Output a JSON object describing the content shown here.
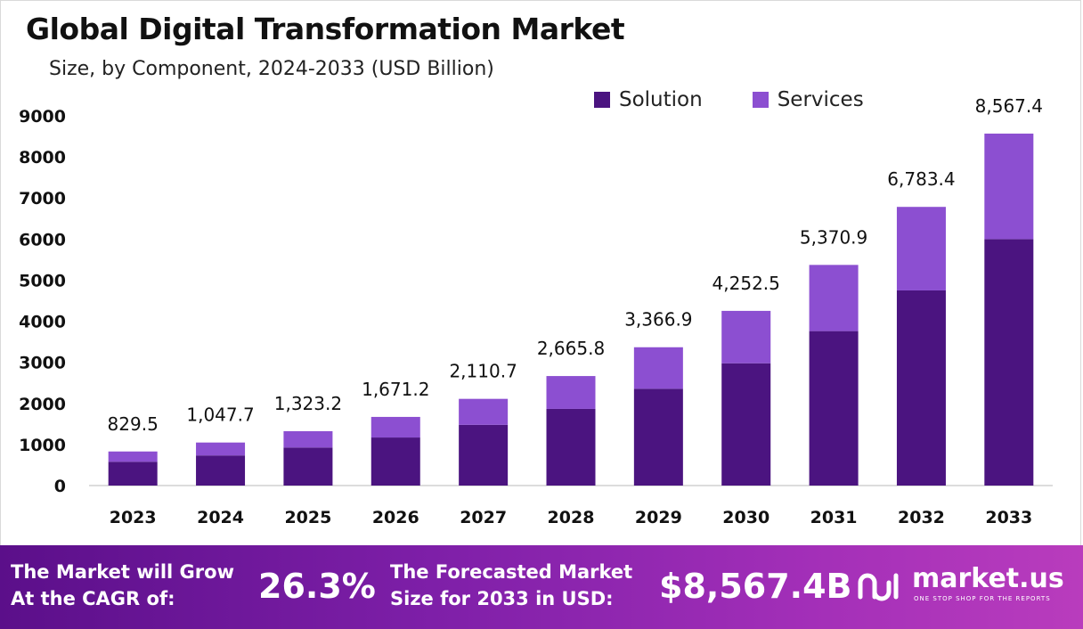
{
  "chart_data": {
    "type": "bar",
    "stacked": true,
    "title": "Global Digital Transformation Market",
    "subtitle": "Size, by Component, 2024-2033 (USD Billion)",
    "categories": [
      "2023",
      "2024",
      "2025",
      "2026",
      "2027",
      "2028",
      "2029",
      "2030",
      "2031",
      "2032",
      "2033"
    ],
    "series": [
      {
        "name": "Solution",
        "color": "#4b1480",
        "values": [
          580,
          733,
          926,
          1170,
          1478,
          1866,
          2357,
          2977,
          3760,
          4750,
          6000
        ]
      },
      {
        "name": "Services",
        "color": "#8c4fd1",
        "values": [
          249.5,
          314.7,
          397.2,
          501.2,
          632.7,
          799.8,
          1009.9,
          1275.5,
          1610.9,
          2033.4,
          2567.4
        ]
      }
    ],
    "totals": [
      829.5,
      1047.7,
      1323.2,
      1671.2,
      2110.7,
      2665.8,
      3366.9,
      4252.5,
      5370.9,
      6783.4,
      8567.4
    ],
    "total_labels": [
      "829.5",
      "1,047.7",
      "1,323.2",
      "1,671.2",
      "2,110.7",
      "2,665.8",
      "3,366.9",
      "4,252.5",
      "5,370.9",
      "6,783.4",
      "8,567.4"
    ],
    "y_ticks": [
      0,
      1000,
      2000,
      3000,
      4000,
      5000,
      6000,
      7000,
      8000,
      9000
    ],
    "ylim": [
      0,
      9000
    ],
    "legend_position": "top-right",
    "grid": false
  },
  "footer": {
    "cagr_label_line1": "The Market will Grow",
    "cagr_label_line2": "At the CAGR of:",
    "cagr_value": "26.3%",
    "forecast_label_line1": "The Forecasted Market",
    "forecast_label_line2": "Size for 2033 in USD:",
    "forecast_value": "$8,567.4B",
    "brand_name": "market.us",
    "brand_tagline": "ONE STOP SHOP FOR THE REPORTS"
  }
}
